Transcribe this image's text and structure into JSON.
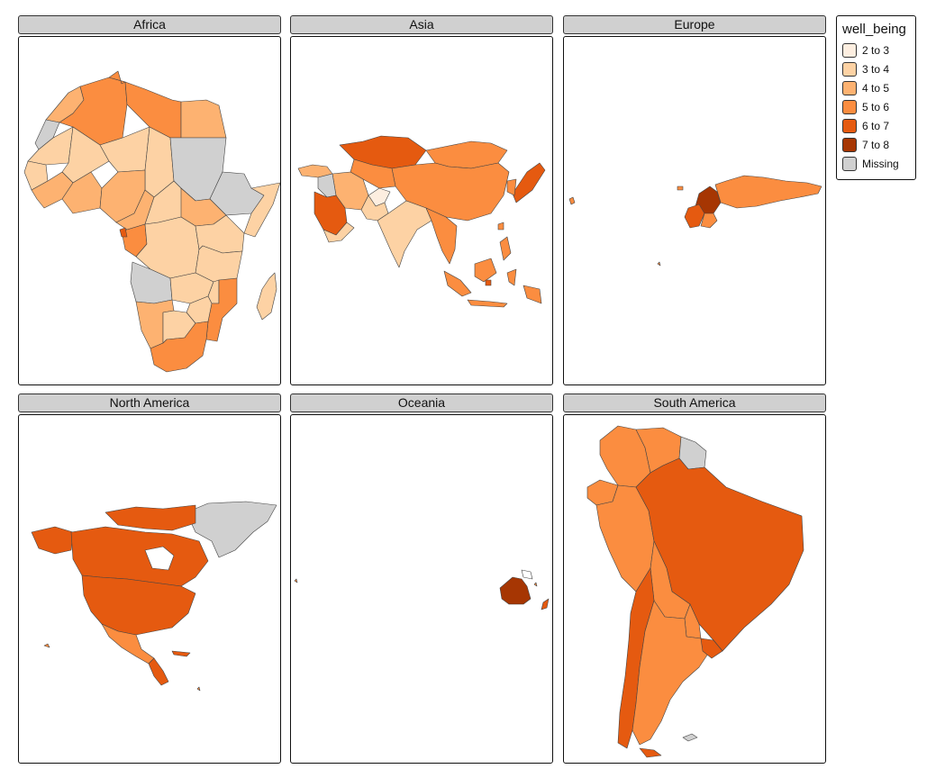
{
  "panels": {
    "africa": "Africa",
    "asia": "Asia",
    "europe": "Europe",
    "north_america": "North America",
    "oceania": "Oceania",
    "south_america": "South America"
  },
  "legend": {
    "title": "well_being",
    "items": [
      {
        "label": "2 to 3",
        "color": "#fdeee0"
      },
      {
        "label": "3 to 4",
        "color": "#fdd2a4"
      },
      {
        "label": "4 to 5",
        "color": "#fdb271"
      },
      {
        "label": "5 to 6",
        "color": "#fb8d40"
      },
      {
        "label": "6 to 7",
        "color": "#e55a10"
      },
      {
        "label": "7 to 8",
        "color": "#a63603"
      },
      {
        "label": "Missing",
        "color": "#d0d0d0"
      }
    ]
  }
}
